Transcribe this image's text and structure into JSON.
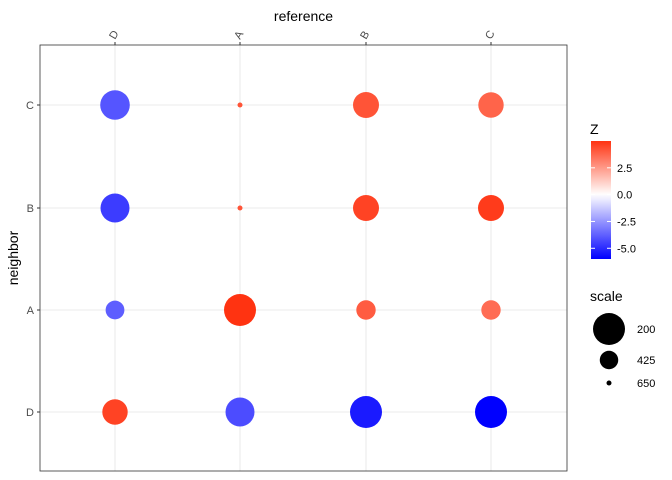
{
  "chart_data": {
    "type": "scatter",
    "xlabel": "reference",
    "ylabel": "neighbor",
    "x_categories": [
      "D",
      "A",
      "B",
      "C"
    ],
    "y_categories": [
      "C",
      "B",
      "A",
      "D"
    ],
    "grid": true,
    "points": [
      {
        "x": "D",
        "y": "C",
        "z": -4.0,
        "scale": 240
      },
      {
        "x": "A",
        "y": "C",
        "z": 4.2,
        "scale": 650
      },
      {
        "x": "B",
        "y": "C",
        "z": 4.2,
        "scale": 300
      },
      {
        "x": "C",
        "y": "C",
        "z": 3.8,
        "scale": 310
      },
      {
        "x": "D",
        "y": "B",
        "z": -4.6,
        "scale": 250
      },
      {
        "x": "A",
        "y": "B",
        "z": 4.2,
        "scale": 650
      },
      {
        "x": "B",
        "y": "B",
        "z": 4.6,
        "scale": 300
      },
      {
        "x": "C",
        "y": "B",
        "z": 4.8,
        "scale": 300
      },
      {
        "x": "D",
        "y": "A",
        "z": -3.8,
        "scale": 420
      },
      {
        "x": "A",
        "y": "A",
        "z": 5.0,
        "scale": 200
      },
      {
        "x": "B",
        "y": "A",
        "z": 4.0,
        "scale": 410
      },
      {
        "x": "C",
        "y": "A",
        "z": 3.6,
        "scale": 410
      },
      {
        "x": "D",
        "y": "D",
        "z": 4.6,
        "scale": 310
      },
      {
        "x": "A",
        "y": "D",
        "z": -4.2,
        "scale": 250
      },
      {
        "x": "B",
        "y": "D",
        "z": -5.4,
        "scale": 200
      },
      {
        "x": "C",
        "y": "D",
        "z": -6.0,
        "scale": 200
      }
    ],
    "color_legend": {
      "title": "Z",
      "breaks": [
        2.5,
        0.0,
        -2.5,
        -5.0
      ],
      "break_labels": [
        "2.5",
        "0.0",
        "-2.5",
        "-5.0"
      ],
      "range": [
        -6.0,
        5.0
      ],
      "low_color": "#0000ff",
      "mid_color": "#ffffff",
      "high_color": "#ff3311"
    },
    "size_legend": {
      "title": "scale",
      "breaks": [
        200,
        425,
        650
      ],
      "break_labels": [
        "200",
        "425",
        "650"
      ]
    },
    "legend_position": "right"
  }
}
